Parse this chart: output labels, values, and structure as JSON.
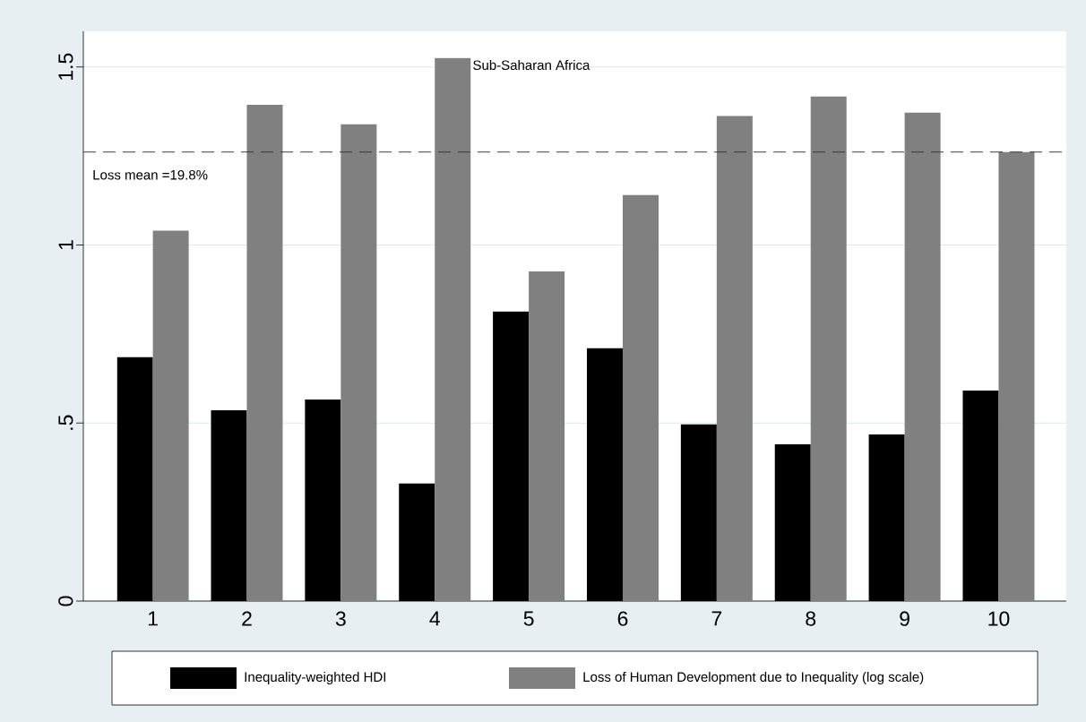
{
  "chart_data": {
    "type": "bar",
    "categories": [
      "1",
      "2",
      "3",
      "4",
      "5",
      "6",
      "7",
      "8",
      "9",
      "10"
    ],
    "series": [
      {
        "name": "Inequality-weighted HDI",
        "color": "#000000",
        "values": [
          0.685,
          0.536,
          0.566,
          0.33,
          0.813,
          0.71,
          0.496,
          0.44,
          0.468,
          0.591
        ]
      },
      {
        "name": "Loss of Human Development due to Inequality (log scale)",
        "color": "#808080",
        "values": [
          1.04,
          1.394,
          1.339,
          1.525,
          0.926,
          1.14,
          1.362,
          1.417,
          1.372,
          1.261
        ]
      }
    ],
    "ylim": [
      0,
      1.6
    ],
    "yticks": [
      0,
      {
        "value": 0.5,
        "label": ".5"
      },
      1,
      1.5
    ],
    "grid": "y",
    "legend": "bottom",
    "ref_lines": [
      {
        "axis": "y",
        "value": 1.261,
        "line_style": "dashed",
        "color": "#333333"
      }
    ],
    "annotations": [
      {
        "text": "Sub-Saharan Africa",
        "x": "4",
        "y": 1.525
      },
      "Loss mean =19.8%"
    ]
  }
}
